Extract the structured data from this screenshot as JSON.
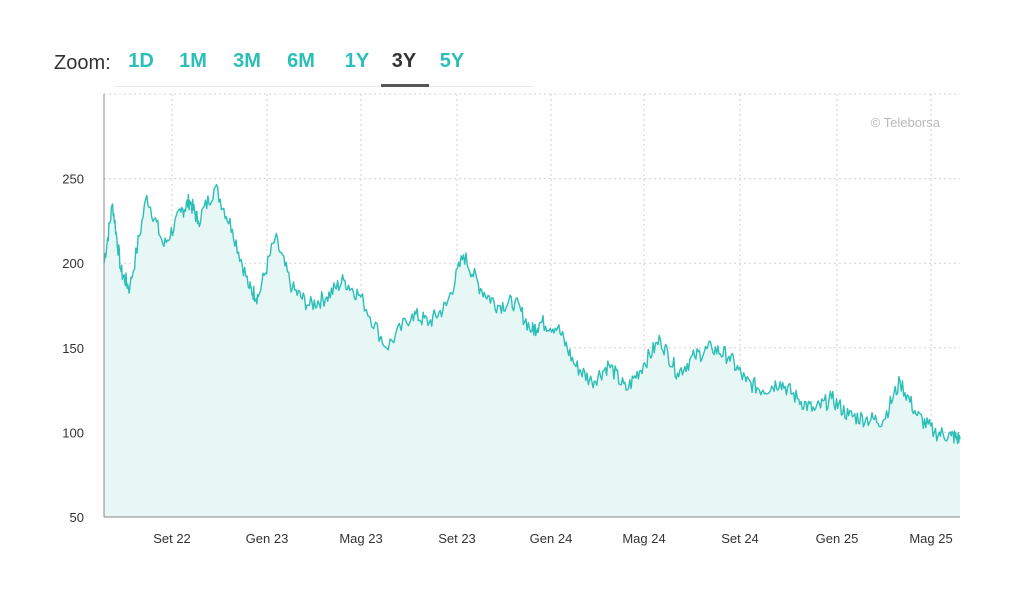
{
  "zoom": {
    "label": "Zoom:",
    "options": [
      "1D",
      "1M",
      "3M",
      "6M",
      "1Y",
      "3Y",
      "5Y"
    ],
    "active": "3Y"
  },
  "chart_data": {
    "type": "area",
    "watermark": "© Teleborsa",
    "ylim": [
      50,
      300
    ],
    "yticks": [
      50,
      100,
      150,
      200,
      250
    ],
    "xticks": [
      "Set 22",
      "Gen 23",
      "Mag 23",
      "Set 23",
      "Gen 24",
      "Mag 24",
      "Set 24",
      "Gen 25",
      "Mag 25"
    ],
    "grid": true,
    "colors": {
      "line": "#2bbfb7",
      "fill": "#e6f7f6",
      "grid": "#d0d0d0"
    },
    "x": [
      0,
      0.01,
      0.02,
      0.03,
      0.05,
      0.07,
      0.09,
      0.1,
      0.11,
      0.13,
      0.15,
      0.17,
      0.18,
      0.2,
      0.22,
      0.24,
      0.26,
      0.28,
      0.3,
      0.33,
      0.36,
      0.38,
      0.4,
      0.42,
      0.44,
      0.46,
      0.48,
      0.5,
      0.51,
      0.53,
      0.55,
      0.57,
      0.59,
      0.61,
      0.63,
      0.65,
      0.67,
      0.69,
      0.71,
      0.73,
      0.75,
      0.77,
      0.79,
      0.81,
      0.83,
      0.85,
      0.87,
      0.89,
      0.91,
      0.93,
      0.95,
      0.97,
      0.99,
      1.0
    ],
    "values": [
      200,
      235,
      195,
      185,
      240,
      210,
      230,
      237,
      225,
      245,
      220,
      185,
      180,
      215,
      185,
      175,
      180,
      190,
      180,
      150,
      170,
      165,
      175,
      205,
      185,
      175,
      177,
      160,
      165,
      162,
      140,
      130,
      140,
      125,
      140,
      155,
      135,
      145,
      150,
      145,
      130,
      125,
      130,
      120,
      113,
      120,
      110,
      108,
      107,
      130,
      110,
      100,
      98,
      96
    ]
  }
}
